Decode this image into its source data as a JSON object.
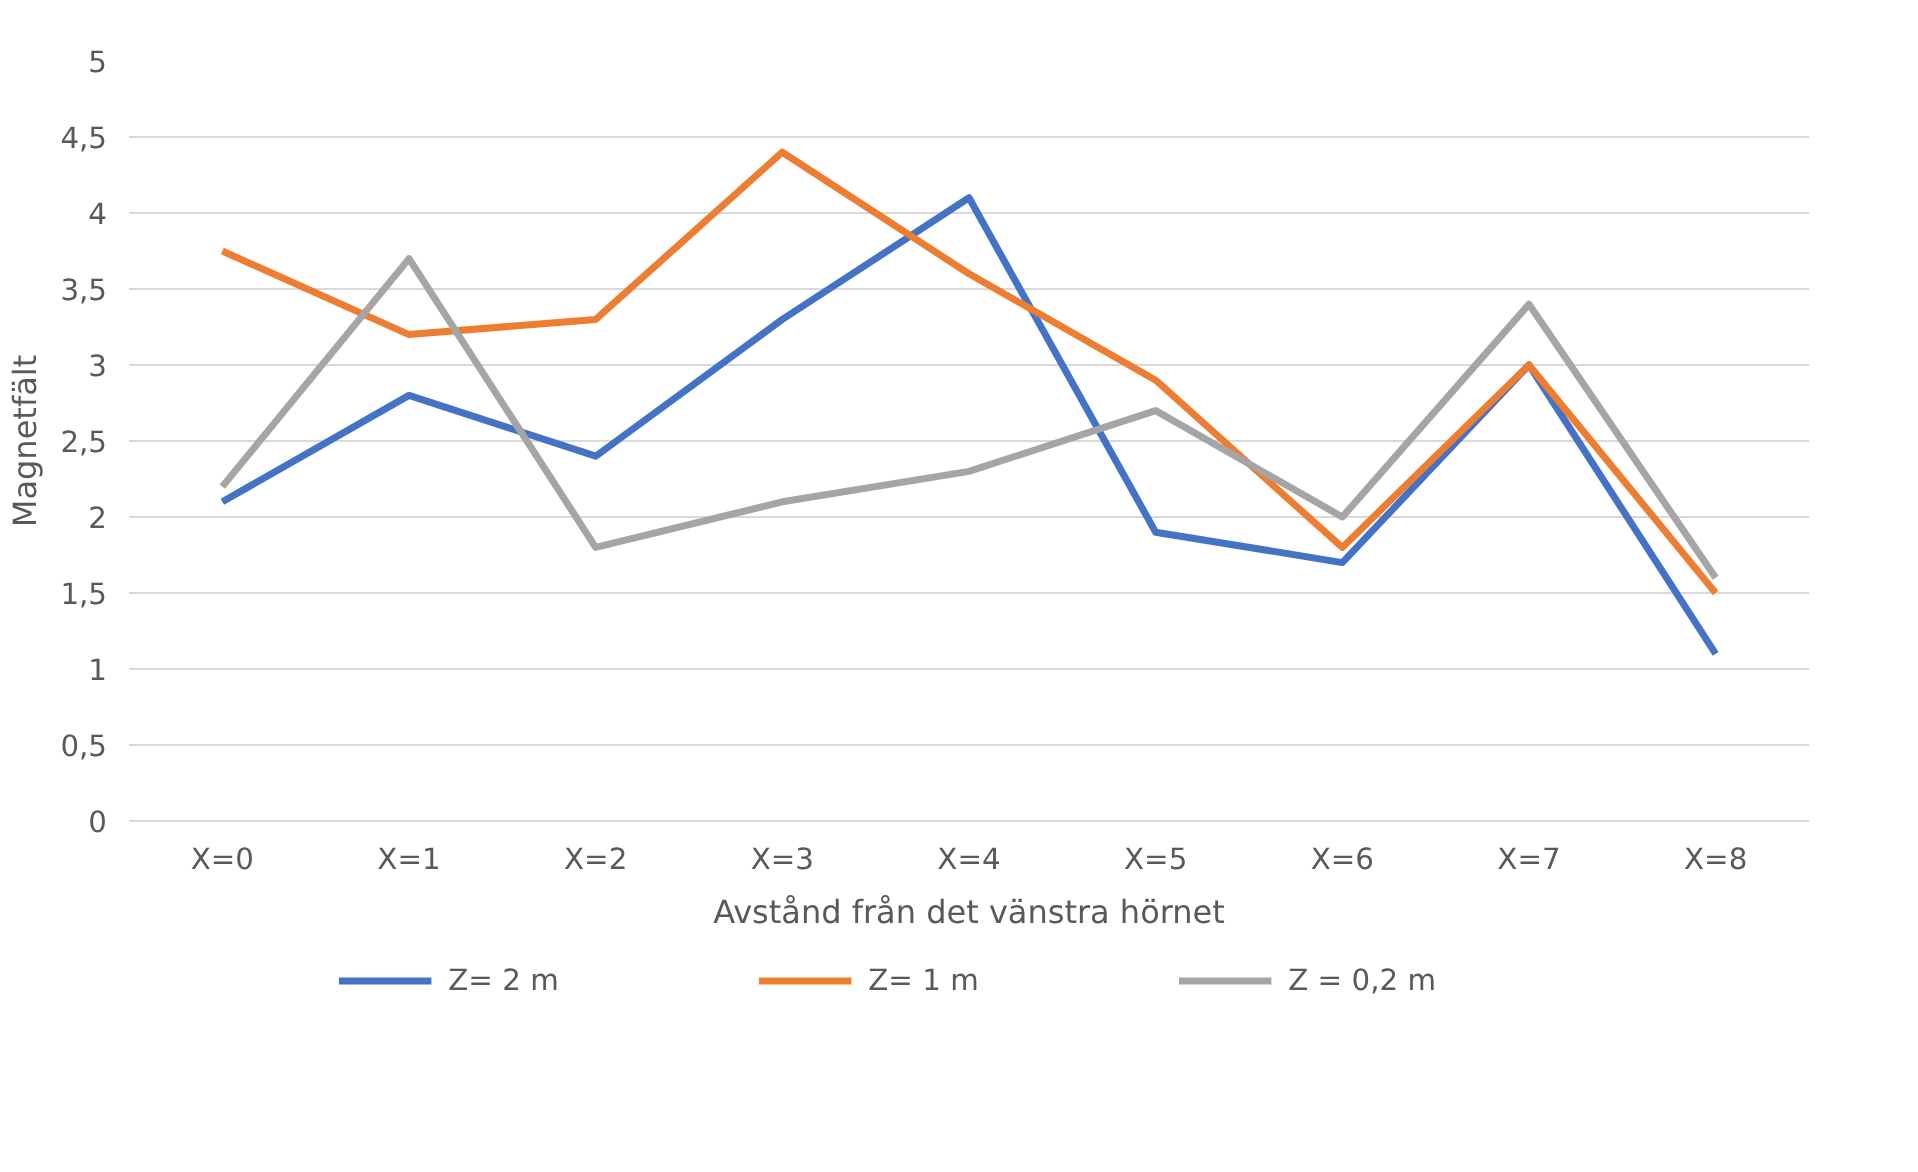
{
  "chart_data": {
    "type": "line",
    "xlabel": "Avstånd från det vänstra hörnet",
    "ylabel": "Magnetfält",
    "categories": [
      "X=0",
      "X=1",
      "X=2",
      "X=3",
      "X=4",
      "X=5",
      "X=6",
      "X=7",
      "X=8"
    ],
    "series": [
      {
        "name": "Z= 2 m",
        "color": "#4472c4",
        "values": [
          2.1,
          2.8,
          2.4,
          3.3,
          4.1,
          1.9,
          1.7,
          3.0,
          1.1
        ]
      },
      {
        "name": "Z= 1 m",
        "color": "#ed7d31",
        "values": [
          3.75,
          3.2,
          3.3,
          4.4,
          3.6,
          2.9,
          1.8,
          3.0,
          1.5
        ]
      },
      {
        "name": "Z = 0,2 m",
        "color": "#a5a5a5",
        "values": [
          2.2,
          3.7,
          1.8,
          2.1,
          2.3,
          2.7,
          2.0,
          3.4,
          1.6
        ]
      }
    ],
    "ylim": [
      0,
      5
    ],
    "yticks": [
      0,
      {
        "value": 0.5,
        "label": "0,5"
      },
      1,
      {
        "value": 1.5,
        "label": "1,5"
      },
      2,
      {
        "value": 2.5,
        "label": "2,5"
      },
      3,
      {
        "value": 3.5,
        "label": "3,5"
      },
      4,
      {
        "value": 4.5,
        "label": "4,5"
      },
      5
    ],
    "grid": "y",
    "legend": "bottom",
    "marker": "none",
    "line_style": "solid"
  }
}
